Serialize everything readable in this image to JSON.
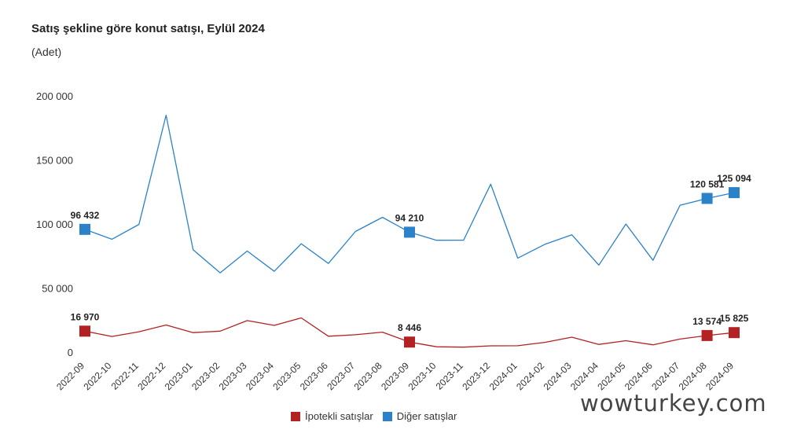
{
  "chart_data": {
    "type": "line",
    "title": "Satış şekline göre konut satışı, Eylül 2024",
    "subtitle": "(Adet)",
    "xlabel": "",
    "ylabel": "",
    "ylim": [
      0,
      200000
    ],
    "yticks": [
      0,
      50000,
      100000,
      150000,
      200000
    ],
    "ytick_labels": [
      "0",
      "50 000",
      "100 000",
      "150 000",
      "200 000"
    ],
    "categories": [
      "2022-09",
      "2022-10",
      "2022-11",
      "2022-12",
      "2023-01",
      "2023-02",
      "2023-03",
      "2023-04",
      "2023-05",
      "2023-06",
      "2023-07",
      "2023-08",
      "2023-09",
      "2023-10",
      "2023-11",
      "2023-12",
      "2024-01",
      "2024-02",
      "2024-03",
      "2024-04",
      "2024-05",
      "2024-06",
      "2024-07",
      "2024-08",
      "2024-09"
    ],
    "series": [
      {
        "name": "İpotekli satışlar",
        "color": "#b22222",
        "values": [
          16970,
          12800,
          16500,
          21800,
          15800,
          17000,
          25200,
          21500,
          27300,
          13000,
          14200,
          16200,
          8446,
          4800,
          4500,
          5500,
          5600,
          8200,
          12300,
          6600,
          9500,
          6300,
          10800,
          13574,
          15825
        ],
        "labeled": [
          {
            "index": 0,
            "label": "16 970"
          },
          {
            "index": 12,
            "label": "8 446"
          },
          {
            "index": 23,
            "label": "13 574"
          },
          {
            "index": 24,
            "label": "15 825"
          }
        ]
      },
      {
        "name": "Diğer satışlar",
        "color": "#2b82c9",
        "values": [
          96432,
          88700,
          100300,
          185500,
          80500,
          62500,
          79500,
          63700,
          85200,
          69800,
          94800,
          105800,
          94210,
          87900,
          88000,
          131700,
          74000,
          84700,
          92200,
          68500,
          100600,
          72300,
          115300,
          120581,
          125094
        ],
        "labeled": [
          {
            "index": 0,
            "label": "96 432"
          },
          {
            "index": 12,
            "label": "94 210"
          },
          {
            "index": 23,
            "label": "120 581"
          },
          {
            "index": 24,
            "label": "125 094"
          }
        ]
      }
    ],
    "legend_position": "bottom-center",
    "grid": false
  },
  "watermark": "wowturkey.com"
}
